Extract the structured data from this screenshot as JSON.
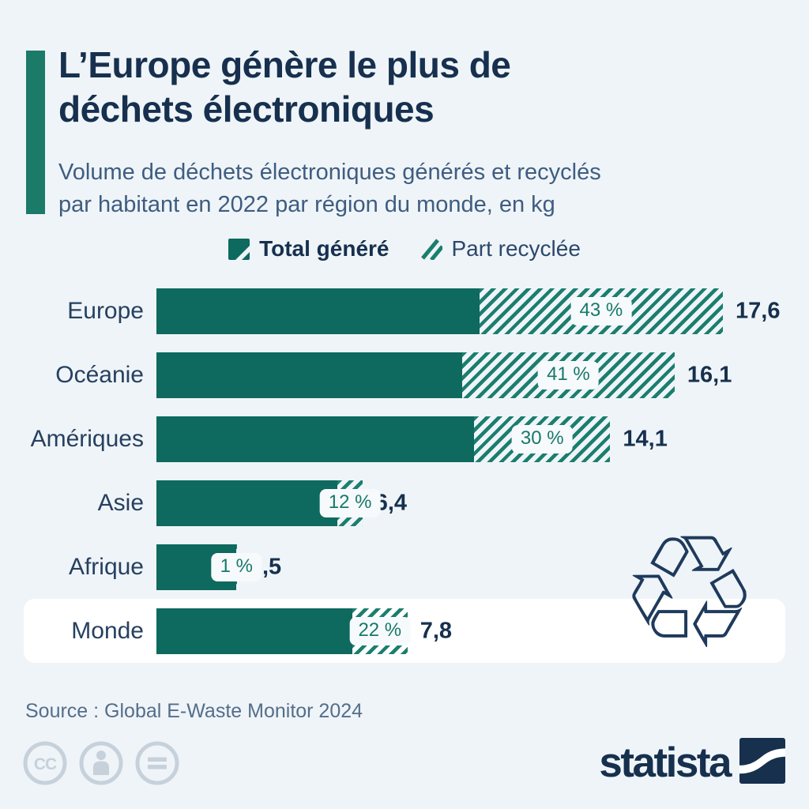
{
  "colors": {
    "background": "#eff4f8",
    "title_navy": "#16304e",
    "subtitle_blue": "#3e5d80",
    "accent_bar": "#1b7a68",
    "bar_solid_teal": "#0e695e",
    "hatch_stripe_teal": "#1b7e6e",
    "pill_text": "#17796a",
    "pill_background": "#f7fafc",
    "highlight_band": "#ffffff",
    "source_text": "#546e8a",
    "license_icon_gray": "#c7d1db",
    "brand_navy": "#16304e"
  },
  "header": {
    "title_lines": [
      "L’Europe génère le plus de",
      "déchets électroniques"
    ],
    "subtitle_lines": [
      "Volume de déchets électroniques générés et recyclés",
      "par habitant en 2022 par région du monde, en kg"
    ]
  },
  "legend": {
    "generated_label": "Total généré",
    "recycled_label": "Part recyclée"
  },
  "chart_data": {
    "type": "bar",
    "orientation": "horizontal",
    "unit": "kg par habitant",
    "categories": [
      "Europe",
      "Océanie",
      "Amériques",
      "Asie",
      "Afrique",
      "Monde"
    ],
    "series": [
      {
        "name": "Total généré (kg)",
        "values": [
          17.6,
          16.1,
          14.1,
          6.4,
          2.5,
          7.8
        ]
      },
      {
        "name": "Part recyclée (%)",
        "values": [
          43,
          41,
          30,
          12,
          1,
          22
        ]
      }
    ],
    "value_labels": [
      "17,6",
      "16,1",
      "14,1",
      "6,4",
      "2,5",
      "7,8"
    ],
    "percent_labels": [
      "43 %",
      "41 %",
      "30 %",
      "12 %",
      "1 %",
      "22 %"
    ],
    "xlim": [
      0,
      17.6
    ],
    "grid": false,
    "legend_position": "top",
    "highlighted_category": "Monde"
  },
  "source_line": "Source : Global E-Waste Monitor 2024",
  "footer": {
    "brand_wordmark": "statista",
    "license_icons": [
      "cc-icon",
      "attribution-icon",
      "equal-icon"
    ]
  },
  "decorations": {
    "recycle_symbol": "♲"
  }
}
